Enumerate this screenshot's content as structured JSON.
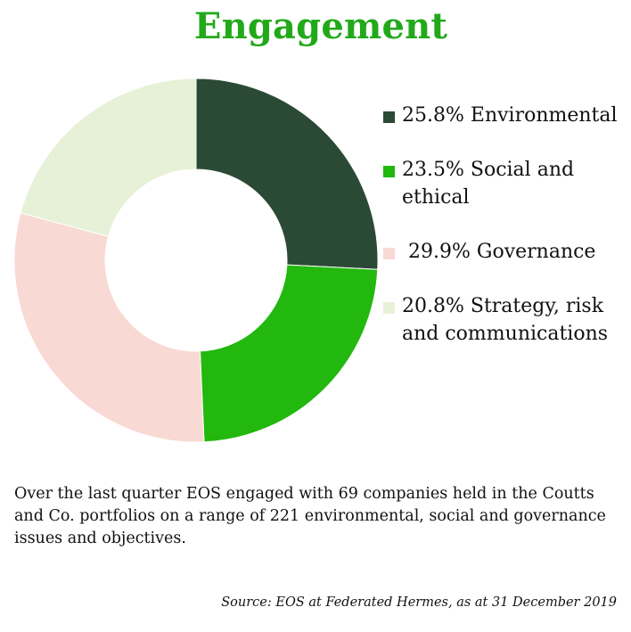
{
  "title": "Engagement",
  "chart_data": {
    "type": "pie",
    "donut": true,
    "title": "Engagement",
    "slices": [
      {
        "label": "Environmental",
        "value": 25.8,
        "value_text": "25.8%",
        "color": "#2b4a35"
      },
      {
        "label": "Social and ethical",
        "value": 23.5,
        "value_text": "23.5%",
        "color": "#22b80e"
      },
      {
        "label": "Governance",
        "value": 29.9,
        "value_text": "29.9%",
        "color": "#f8d9d3"
      },
      {
        "label": "Strategy, risk and communications",
        "value": 20.8,
        "value_text": "20.8%",
        "color": "#e6f1d7"
      }
    ],
    "legend_position": "right"
  },
  "legend": [
    {
      "text": "25.8% Environmental",
      "color": "#2b4a35"
    },
    {
      "text": "23.5% Social and ethical",
      "color": "#22b80e"
    },
    {
      "text": " 29.9% Governance",
      "color": "#f8d9d3"
    },
    {
      "text": "20.8% Strategy, risk and communications",
      "color": "#e6f1d7"
    }
  ],
  "note": "Over the last quarter EOS engaged with 69 companies held in the Coutts and Co. portfolios on a range of 221 environmental, social and governance issues and objectives.",
  "source": "Source: EOS at Federated Hermes, as at 31 December 2019"
}
